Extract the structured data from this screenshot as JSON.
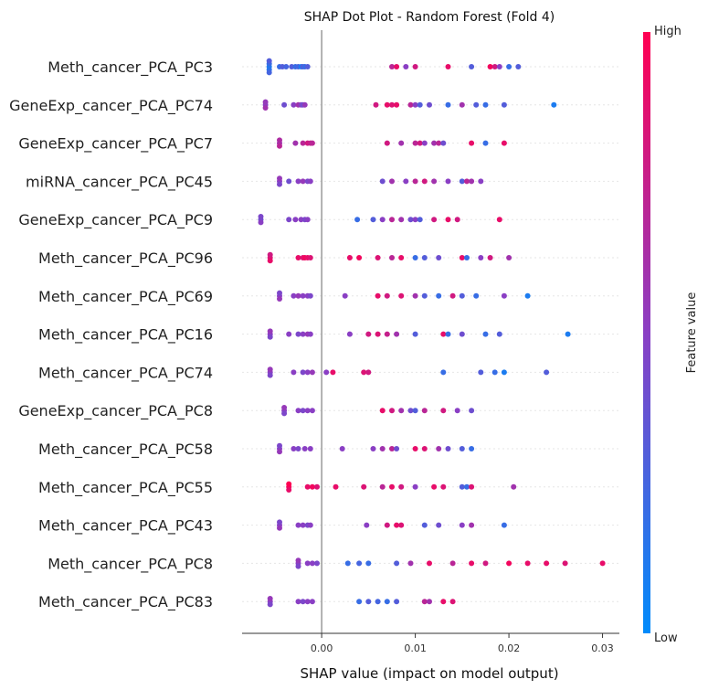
{
  "chart_data": {
    "type": "scatter",
    "title": "SHAP Dot Plot - Random Forest (Fold 4)",
    "xlabel": "SHAP value (impact on model output)",
    "xlim": [
      -0.0085,
      0.0318
    ],
    "xticks": [
      0.0,
      0.01,
      0.02,
      0.03
    ],
    "xtick_labels": [
      "0.00",
      "0.01",
      "0.02",
      "0.03"
    ],
    "colorbar": {
      "label": "Feature value",
      "high": "High",
      "low": "Low"
    },
    "colors": {
      "low": "#008bfb",
      "mid": "#8a3fc4",
      "high": "#ff0052",
      "zero_line": "#999999",
      "grid": "#e6e6e6"
    },
    "features": [
      {
        "name": "Meth_cancer_PCA_PC3",
        "points": [
          [
            -0.0056,
            0.1
          ],
          [
            -0.0056,
            0.15
          ],
          [
            -0.0056,
            0.2
          ],
          [
            -0.0056,
            0.25
          ],
          [
            -0.0056,
            0.3
          ],
          [
            -0.0045,
            0.2
          ],
          [
            -0.0042,
            0.3
          ],
          [
            -0.0038,
            0.25
          ],
          [
            -0.0032,
            0.3
          ],
          [
            -0.0028,
            0.2
          ],
          [
            -0.0025,
            0.25
          ],
          [
            -0.0022,
            0.1
          ],
          [
            -0.002,
            0.3
          ],
          [
            -0.0018,
            0.2
          ],
          [
            -0.0015,
            0.3
          ],
          [
            0.0075,
            0.7
          ],
          [
            0.008,
            0.9
          ],
          [
            0.009,
            0.5
          ],
          [
            0.01,
            0.8
          ],
          [
            0.0135,
            0.9
          ],
          [
            0.016,
            0.3
          ],
          [
            0.018,
            0.95
          ],
          [
            0.0185,
            0.8
          ],
          [
            0.019,
            0.5
          ],
          [
            0.02,
            0.2
          ],
          [
            0.021,
            0.3
          ]
        ]
      },
      {
        "name": "GeneExp_cancer_PCA_PC74",
        "points": [
          [
            -0.006,
            0.5
          ],
          [
            -0.006,
            0.6
          ],
          [
            -0.006,
            0.55
          ],
          [
            -0.004,
            0.4
          ],
          [
            -0.003,
            0.5
          ],
          [
            -0.0025,
            0.6
          ],
          [
            -0.0022,
            0.5
          ],
          [
            -0.002,
            0.4
          ],
          [
            -0.0018,
            0.55
          ],
          [
            0.0058,
            0.8
          ],
          [
            0.007,
            0.9
          ],
          [
            0.0075,
            0.85
          ],
          [
            0.008,
            0.9
          ],
          [
            0.0095,
            0.7
          ],
          [
            0.01,
            0.5
          ],
          [
            0.0105,
            0.3
          ],
          [
            0.0115,
            0.4
          ],
          [
            0.0135,
            0.2
          ],
          [
            0.015,
            0.6
          ],
          [
            0.0165,
            0.3
          ],
          [
            0.0175,
            0.2
          ],
          [
            0.0195,
            0.3
          ],
          [
            0.0248,
            0.1
          ]
        ]
      },
      {
        "name": "GeneExp_cancer_PCA_PC7",
        "points": [
          [
            -0.0045,
            0.6
          ],
          [
            -0.0045,
            0.7
          ],
          [
            -0.0045,
            0.65
          ],
          [
            -0.0028,
            0.6
          ],
          [
            -0.002,
            0.7
          ],
          [
            -0.0015,
            0.8
          ],
          [
            -0.0012,
            0.75
          ],
          [
            -0.001,
            0.7
          ],
          [
            0.007,
            0.8
          ],
          [
            0.0085,
            0.6
          ],
          [
            0.01,
            0.7
          ],
          [
            0.0105,
            0.8
          ],
          [
            0.011,
            0.5
          ],
          [
            0.012,
            0.6
          ],
          [
            0.0125,
            0.7
          ],
          [
            0.013,
            0.4
          ],
          [
            0.016,
            0.9
          ],
          [
            0.0175,
            0.2
          ],
          [
            0.0195,
            0.9
          ]
        ]
      },
      {
        "name": "miRNA_cancer_PCA_PC45",
        "points": [
          [
            -0.0045,
            0.5
          ],
          [
            -0.0045,
            0.45
          ],
          [
            -0.0045,
            0.55
          ],
          [
            -0.0035,
            0.4
          ],
          [
            -0.0025,
            0.5
          ],
          [
            -0.002,
            0.55
          ],
          [
            -0.0015,
            0.45
          ],
          [
            -0.0012,
            0.5
          ],
          [
            0.0065,
            0.4
          ],
          [
            0.0075,
            0.6
          ],
          [
            0.009,
            0.5
          ],
          [
            0.01,
            0.7
          ],
          [
            0.011,
            0.8
          ],
          [
            0.012,
            0.6
          ],
          [
            0.0135,
            0.5
          ],
          [
            0.015,
            0.3
          ],
          [
            0.0155,
            0.7
          ],
          [
            0.016,
            0.6
          ],
          [
            0.017,
            0.5
          ]
        ]
      },
      {
        "name": "GeneExp_cancer_PCA_PC9",
        "points": [
          [
            -0.0065,
            0.4
          ],
          [
            -0.0065,
            0.5
          ],
          [
            -0.0065,
            0.45
          ],
          [
            -0.0035,
            0.45
          ],
          [
            -0.0028,
            0.5
          ],
          [
            -0.0022,
            0.5
          ],
          [
            -0.0018,
            0.45
          ],
          [
            -0.0015,
            0.5
          ],
          [
            0.0038,
            0.2
          ],
          [
            0.0055,
            0.3
          ],
          [
            0.0065,
            0.5
          ],
          [
            0.0075,
            0.7
          ],
          [
            0.0085,
            0.6
          ],
          [
            0.0095,
            0.4
          ],
          [
            0.01,
            0.5
          ],
          [
            0.0105,
            0.3
          ],
          [
            0.012,
            0.8
          ],
          [
            0.0135,
            0.9
          ],
          [
            0.0145,
            0.8
          ],
          [
            0.019,
            0.9
          ]
        ]
      },
      {
        "name": "Meth_cancer_PCA_PC96",
        "points": [
          [
            -0.0055,
            0.85
          ],
          [
            -0.0055,
            0.9
          ],
          [
            -0.0055,
            0.8
          ],
          [
            -0.0025,
            0.9
          ],
          [
            -0.002,
            0.85
          ],
          [
            -0.0018,
            0.95
          ],
          [
            -0.0015,
            0.9
          ],
          [
            -0.0012,
            0.85
          ],
          [
            0.003,
            0.9
          ],
          [
            0.004,
            0.95
          ],
          [
            0.006,
            0.85
          ],
          [
            0.0075,
            0.7
          ],
          [
            0.0085,
            0.9
          ],
          [
            0.01,
            0.2
          ],
          [
            0.011,
            0.3
          ],
          [
            0.0125,
            0.4
          ],
          [
            0.015,
            0.9
          ],
          [
            0.0155,
            0.2
          ],
          [
            0.017,
            0.5
          ],
          [
            0.018,
            0.8
          ],
          [
            0.02,
            0.6
          ]
        ]
      },
      {
        "name": "Meth_cancer_PCA_PC69",
        "points": [
          [
            -0.0045,
            0.5
          ],
          [
            -0.0045,
            0.55
          ],
          [
            -0.0045,
            0.45
          ],
          [
            -0.003,
            0.5
          ],
          [
            -0.0025,
            0.55
          ],
          [
            -0.002,
            0.5
          ],
          [
            -0.0015,
            0.5
          ],
          [
            -0.0012,
            0.45
          ],
          [
            0.0025,
            0.5
          ],
          [
            0.006,
            0.9
          ],
          [
            0.007,
            0.8
          ],
          [
            0.0085,
            0.85
          ],
          [
            0.01,
            0.6
          ],
          [
            0.011,
            0.3
          ],
          [
            0.0125,
            0.2
          ],
          [
            0.014,
            0.8
          ],
          [
            0.015,
            0.3
          ],
          [
            0.0165,
            0.2
          ],
          [
            0.0195,
            0.5
          ],
          [
            0.022,
            0.1
          ]
        ]
      },
      {
        "name": "Meth_cancer_PCA_PC16",
        "points": [
          [
            -0.0055,
            0.5
          ],
          [
            -0.0055,
            0.45
          ],
          [
            -0.0055,
            0.55
          ],
          [
            -0.0035,
            0.5
          ],
          [
            -0.0025,
            0.45
          ],
          [
            -0.002,
            0.5
          ],
          [
            -0.0015,
            0.55
          ],
          [
            -0.0012,
            0.5
          ],
          [
            0.003,
            0.5
          ],
          [
            0.005,
            0.8
          ],
          [
            0.006,
            0.85
          ],
          [
            0.007,
            0.75
          ],
          [
            0.008,
            0.6
          ],
          [
            0.01,
            0.3
          ],
          [
            0.013,
            0.9
          ],
          [
            0.0135,
            0.2
          ],
          [
            0.015,
            0.4
          ],
          [
            0.0175,
            0.2
          ],
          [
            0.019,
            0.3
          ],
          [
            0.0263,
            0.1
          ]
        ]
      },
      {
        "name": "Meth_cancer_PCA_PC74",
        "points": [
          [
            -0.0055,
            0.5
          ],
          [
            -0.0055,
            0.45
          ],
          [
            -0.0055,
            0.55
          ],
          [
            -0.003,
            0.5
          ],
          [
            -0.002,
            0.45
          ],
          [
            -0.0015,
            0.5
          ],
          [
            -0.001,
            0.55
          ],
          [
            0.0005,
            0.5
          ],
          [
            0.0012,
            0.9
          ],
          [
            0.0045,
            0.85
          ],
          [
            0.005,
            0.8
          ],
          [
            0.013,
            0.2
          ],
          [
            0.017,
            0.3
          ],
          [
            0.0185,
            0.2
          ],
          [
            0.0195,
            0.1
          ],
          [
            0.024,
            0.3
          ]
        ]
      },
      {
        "name": "GeneExp_cancer_PCA_PC8",
        "points": [
          [
            -0.004,
            0.5
          ],
          [
            -0.004,
            0.45
          ],
          [
            -0.004,
            0.55
          ],
          [
            -0.0025,
            0.5
          ],
          [
            -0.002,
            0.45
          ],
          [
            -0.0015,
            0.5
          ],
          [
            -0.001,
            0.5
          ],
          [
            0.0065,
            0.9
          ],
          [
            0.0075,
            0.8
          ],
          [
            0.0085,
            0.6
          ],
          [
            0.0095,
            0.4
          ],
          [
            0.01,
            0.3
          ],
          [
            0.011,
            0.7
          ],
          [
            0.013,
            0.8
          ],
          [
            0.0145,
            0.5
          ],
          [
            0.016,
            0.4
          ]
        ]
      },
      {
        "name": "Meth_cancer_PCA_PC58",
        "points": [
          [
            -0.0045,
            0.5
          ],
          [
            -0.0045,
            0.55
          ],
          [
            -0.0045,
            0.45
          ],
          [
            -0.003,
            0.5
          ],
          [
            -0.0025,
            0.45
          ],
          [
            -0.0018,
            0.5
          ],
          [
            -0.0012,
            0.5
          ],
          [
            0.0022,
            0.5
          ],
          [
            0.0055,
            0.5
          ],
          [
            0.0065,
            0.6
          ],
          [
            0.0075,
            0.7
          ],
          [
            0.008,
            0.4
          ],
          [
            0.01,
            0.9
          ],
          [
            0.011,
            0.85
          ],
          [
            0.0125,
            0.6
          ],
          [
            0.0135,
            0.4
          ],
          [
            0.015,
            0.3
          ],
          [
            0.016,
            0.2
          ]
        ]
      },
      {
        "name": "Meth_cancer_PCA_PC55",
        "points": [
          [
            -0.0035,
            0.95
          ],
          [
            -0.0035,
            0.9
          ],
          [
            -0.0035,
            1.0
          ],
          [
            -0.0015,
            0.9
          ],
          [
            -0.001,
            0.95
          ],
          [
            -0.0005,
            0.85
          ],
          [
            0.0015,
            0.9
          ],
          [
            0.0045,
            0.85
          ],
          [
            0.0065,
            0.7
          ],
          [
            0.0075,
            0.9
          ],
          [
            0.0085,
            0.8
          ],
          [
            0.01,
            0.5
          ],
          [
            0.012,
            0.9
          ],
          [
            0.013,
            0.85
          ],
          [
            0.015,
            0.3
          ],
          [
            0.0155,
            0.2
          ],
          [
            0.016,
            0.85
          ],
          [
            0.0205,
            0.6
          ]
        ]
      },
      {
        "name": "Meth_cancer_PCA_PC43",
        "points": [
          [
            -0.0045,
            0.5
          ],
          [
            -0.0045,
            0.55
          ],
          [
            -0.0045,
            0.45
          ],
          [
            -0.0025,
            0.5
          ],
          [
            -0.002,
            0.5
          ],
          [
            -0.0015,
            0.45
          ],
          [
            -0.0012,
            0.5
          ],
          [
            0.0048,
            0.5
          ],
          [
            0.007,
            0.8
          ],
          [
            0.008,
            0.9
          ],
          [
            0.0085,
            0.85
          ],
          [
            0.011,
            0.3
          ],
          [
            0.0125,
            0.4
          ],
          [
            0.015,
            0.5
          ],
          [
            0.016,
            0.6
          ],
          [
            0.0195,
            0.2
          ]
        ]
      },
      {
        "name": "Meth_cancer_PCA_PC8",
        "points": [
          [
            -0.0025,
            0.5
          ],
          [
            -0.0025,
            0.45
          ],
          [
            -0.0025,
            0.55
          ],
          [
            -0.0015,
            0.5
          ],
          [
            -0.001,
            0.5
          ],
          [
            -0.0005,
            0.45
          ],
          [
            0.0028,
            0.2
          ],
          [
            0.004,
            0.25
          ],
          [
            0.005,
            0.2
          ],
          [
            0.008,
            0.3
          ],
          [
            0.0095,
            0.6
          ],
          [
            0.0115,
            0.9
          ],
          [
            0.014,
            0.7
          ],
          [
            0.016,
            0.9
          ],
          [
            0.0175,
            0.8
          ],
          [
            0.02,
            0.95
          ],
          [
            0.022,
            0.9
          ],
          [
            0.024,
            0.9
          ],
          [
            0.026,
            0.85
          ],
          [
            0.03,
            0.9
          ]
        ]
      },
      {
        "name": "Meth_cancer_PCA_PC83",
        "points": [
          [
            -0.0055,
            0.5
          ],
          [
            -0.0055,
            0.45
          ],
          [
            -0.0055,
            0.55
          ],
          [
            -0.0025,
            0.5
          ],
          [
            -0.002,
            0.45
          ],
          [
            -0.0015,
            0.5
          ],
          [
            -0.001,
            0.5
          ],
          [
            0.004,
            0.2
          ],
          [
            0.005,
            0.3
          ],
          [
            0.006,
            0.25
          ],
          [
            0.007,
            0.2
          ],
          [
            0.008,
            0.3
          ],
          [
            0.011,
            0.7
          ],
          [
            0.0115,
            0.6
          ],
          [
            0.013,
            0.9
          ],
          [
            0.014,
            0.85
          ]
        ]
      }
    ]
  }
}
